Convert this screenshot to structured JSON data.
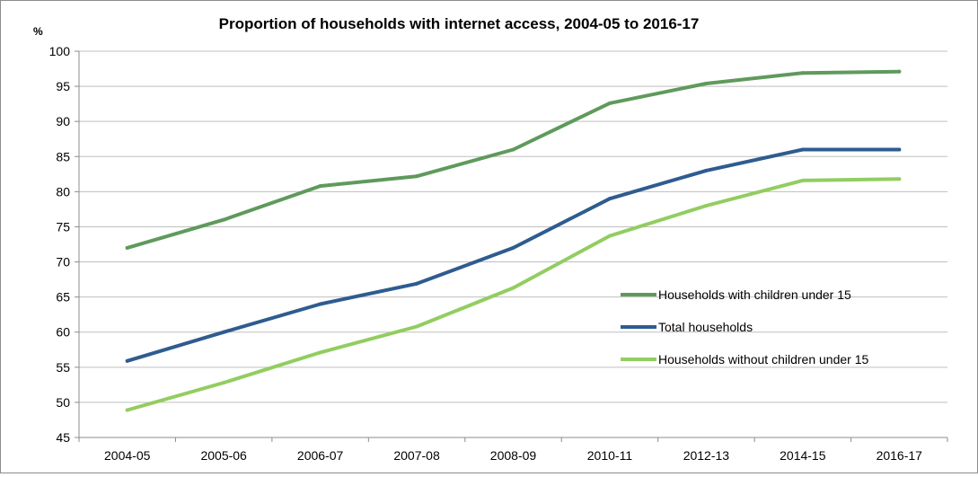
{
  "chart_data": {
    "type": "line",
    "title": "Proportion of households  with internet access,  2004-05  to 2016-17",
    "unit_label": "%",
    "xlabel": "",
    "ylabel": "",
    "categories": [
      "2004-05",
      "2005-06",
      "2006-07",
      "2007-08",
      "2008-09",
      "2010-11",
      "2012-13",
      "2014-15",
      "2016-17"
    ],
    "ylim": [
      45,
      100
    ],
    "yticks": [
      45,
      50,
      55,
      60,
      65,
      70,
      75,
      80,
      85,
      90,
      95,
      100
    ],
    "grid": true,
    "legend_position": "right",
    "series": [
      {
        "name": "Households with children under 15",
        "color": "#5f9a5c",
        "values": [
          72,
          76,
          80.8,
          82.2,
          86,
          92.6,
          95.4,
          96.9,
          97.1
        ]
      },
      {
        "name": "Total households",
        "color": "#2e5c8f",
        "values": [
          55.9,
          60,
          64,
          66.9,
          72,
          79,
          83,
          86,
          86
        ]
      },
      {
        "name": "Households without children under 15",
        "color": "#92cd60",
        "values": [
          48.9,
          52.8,
          57.1,
          60.8,
          66.3,
          73.7,
          78,
          81.6,
          81.8
        ]
      }
    ]
  }
}
